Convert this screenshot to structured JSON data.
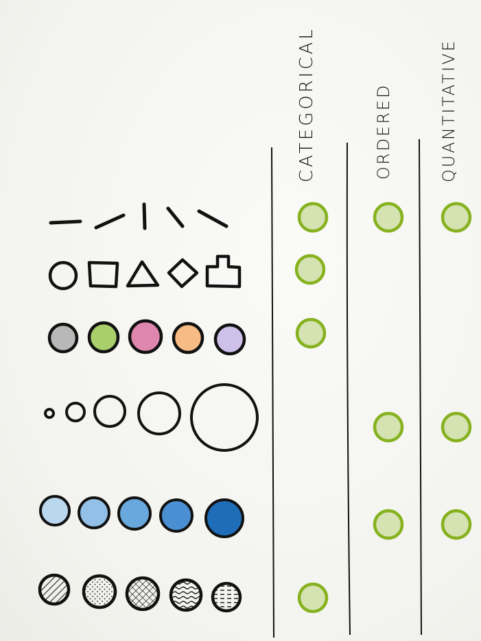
{
  "columns": [
    {
      "key": "categorical",
      "label": "CATEGORICAL"
    },
    {
      "key": "ordered",
      "label": "ORDERED"
    },
    {
      "key": "quantitative",
      "label": "QUANTITATIVE"
    }
  ],
  "rows": [
    {
      "channel": "orientation",
      "categorical": true,
      "ordered": true,
      "quantitative": true
    },
    {
      "channel": "shape",
      "categorical": true,
      "ordered": false,
      "quantitative": false
    },
    {
      "channel": "hue",
      "categorical": true,
      "ordered": false,
      "quantitative": false,
      "colors": [
        "#b8b8b8",
        "#a9cf6b",
        "#df86ae",
        "#f7bc86",
        "#cfc0ea"
      ]
    },
    {
      "channel": "size",
      "categorical": false,
      "ordered": true,
      "quantitative": true
    },
    {
      "channel": "lightness",
      "categorical": false,
      "ordered": true,
      "quantitative": true,
      "colors": [
        "#b9d7ef",
        "#93c0e6",
        "#69a8dc",
        "#4a8fd2",
        "#1f6db8"
      ]
    },
    {
      "channel": "texture",
      "categorical": true,
      "ordered": false,
      "quantitative": false
    }
  ],
  "colors": {
    "check_stroke": "#86b21f",
    "check_fill": "#d4e3b1",
    "ink": "#111111"
  }
}
